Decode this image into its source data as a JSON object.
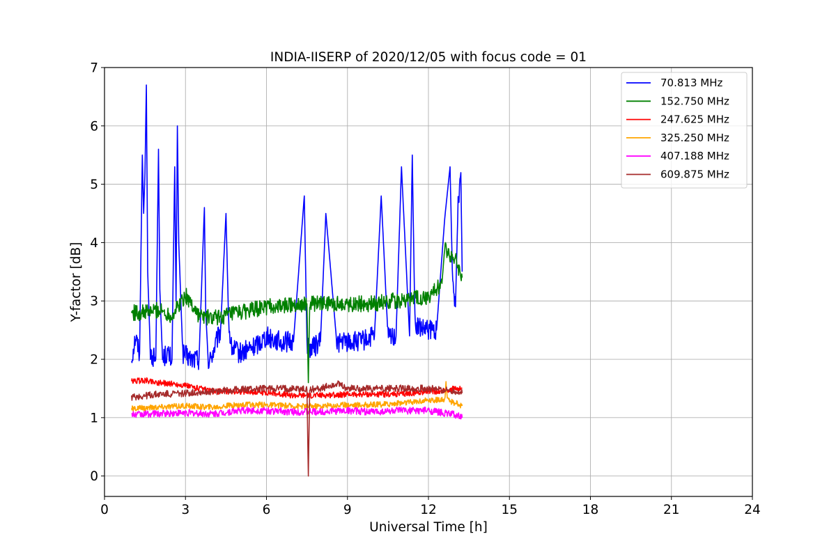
{
  "chart_data": {
    "type": "line",
    "title": "INDIA-IISERP of 2020/12/05 with focus code = 01",
    "xlabel": "Universal Time [h]",
    "ylabel": "Y-factor [dB]",
    "xlim": [
      0,
      24
    ],
    "ylim": [
      -0.35,
      7.0
    ],
    "xticks": [
      "0",
      "3",
      "6",
      "9",
      "12",
      "15",
      "18",
      "21",
      "24"
    ],
    "yticks": [
      "0",
      "1",
      "2",
      "3",
      "4",
      "5",
      "6",
      "7"
    ],
    "grid": true,
    "legend_position": "top-right",
    "series": [
      {
        "name": "  70.813 MHz",
        "color": "#0000ff",
        "x": [
          1.0,
          1.15,
          1.3,
          1.4,
          1.45,
          1.5,
          1.55,
          1.6,
          1.7,
          1.9,
          2.0,
          2.05,
          2.15,
          2.3,
          2.5,
          2.6,
          2.65,
          2.7,
          2.75,
          2.9,
          3.2,
          3.5,
          3.7,
          3.75,
          3.85,
          4.0,
          4.3,
          4.5,
          4.6,
          4.7,
          5.0,
          5.5,
          6.0,
          6.5,
          7.0,
          7.4,
          7.5,
          7.55,
          7.7,
          8.0,
          8.2,
          8.6,
          9.0,
          9.5,
          10.0,
          10.25,
          10.5,
          10.8,
          11.0,
          11.3,
          11.4,
          11.5,
          11.8,
          12.0,
          12.3,
          12.6,
          12.8,
          12.9,
          13.0,
          13.1,
          13.2,
          13.25
        ],
        "values": [
          2.0,
          2.4,
          2.1,
          5.5,
          4.5,
          5.2,
          6.7,
          3.5,
          2.1,
          2.0,
          5.6,
          3.2,
          2.0,
          2.1,
          2.0,
          5.3,
          3.0,
          6.0,
          4.0,
          2.1,
          2.0,
          2.0,
          4.6,
          2.8,
          1.9,
          2.1,
          2.5,
          4.5,
          2.6,
          2.2,
          2.1,
          2.2,
          2.4,
          2.3,
          2.3,
          4.8,
          2.3,
          2.2,
          2.2,
          2.3,
          4.5,
          2.3,
          2.3,
          2.3,
          2.4,
          4.8,
          2.4,
          2.4,
          5.3,
          2.4,
          5.5,
          2.6,
          2.5,
          2.5,
          2.5,
          4.4,
          5.3,
          3.2,
          2.9,
          4.7,
          5.2,
          3.5
        ]
      },
      {
        "name": "152.750 MHz",
        "color": "#008000",
        "x": [
          1.0,
          1.5,
          2.0,
          2.5,
          3.0,
          3.5,
          4.0,
          4.5,
          5.0,
          5.5,
          6.0,
          6.5,
          7.0,
          7.5,
          7.55,
          7.6,
          8.0,
          8.5,
          9.0,
          9.5,
          10.0,
          10.5,
          11.0,
          11.5,
          12.0,
          12.5,
          12.6,
          12.8,
          13.0,
          13.25
        ],
        "values": [
          2.8,
          2.8,
          2.85,
          2.75,
          3.1,
          2.75,
          2.7,
          2.75,
          2.8,
          2.85,
          2.9,
          2.9,
          2.95,
          2.95,
          1.6,
          2.95,
          2.95,
          2.95,
          2.95,
          2.95,
          2.95,
          3.0,
          3.0,
          3.05,
          3.05,
          3.3,
          3.9,
          3.8,
          3.7,
          3.4
        ]
      },
      {
        "name": "247.625 MHz",
        "color": "#ff0000",
        "x": [
          1.0,
          1.5,
          2.0,
          2.5,
          3.0,
          3.5,
          4.0,
          5.0,
          6.0,
          7.0,
          7.5,
          8.0,
          9.0,
          10.0,
          11.0,
          12.0,
          12.5,
          13.0,
          13.25
        ],
        "values": [
          1.62,
          1.64,
          1.6,
          1.58,
          1.55,
          1.5,
          1.45,
          1.45,
          1.43,
          1.38,
          1.38,
          1.38,
          1.4,
          1.4,
          1.4,
          1.45,
          1.45,
          1.5,
          1.5
        ]
      },
      {
        "name": "325.250 MHz",
        "color": "#ffa500",
        "x": [
          1.0,
          2.0,
          3.0,
          4.0,
          5.0,
          6.0,
          7.0,
          7.5,
          8.0,
          9.0,
          10.0,
          11.0,
          12.0,
          12.6,
          12.65,
          12.7,
          13.0,
          13.25
        ],
        "values": [
          1.15,
          1.18,
          1.2,
          1.18,
          1.22,
          1.22,
          1.2,
          1.2,
          1.2,
          1.22,
          1.22,
          1.25,
          1.3,
          1.3,
          1.6,
          1.3,
          1.25,
          1.2
        ]
      },
      {
        "name": "407.188 MHz",
        "color": "#ff00ff",
        "x": [
          1.0,
          2.0,
          3.0,
          4.0,
          5.0,
          6.0,
          7.0,
          7.5,
          8.0,
          9.0,
          10.0,
          11.0,
          12.0,
          13.0,
          13.25
        ],
        "values": [
          1.05,
          1.07,
          1.08,
          1.06,
          1.12,
          1.12,
          1.1,
          1.1,
          1.1,
          1.12,
          1.1,
          1.12,
          1.12,
          1.05,
          1.0
        ]
      },
      {
        "name": "609.875 MHz",
        "color": "#a52a2a",
        "x": [
          1.0,
          2.0,
          3.0,
          4.0,
          5.0,
          6.0,
          7.0,
          7.5,
          7.55,
          7.6,
          8.0,
          8.6,
          9.0,
          10.0,
          11.0,
          12.0,
          13.0,
          13.25
        ],
        "values": [
          1.35,
          1.4,
          1.42,
          1.45,
          1.48,
          1.5,
          1.5,
          1.48,
          0.0,
          1.48,
          1.5,
          1.58,
          1.5,
          1.5,
          1.5,
          1.5,
          1.45,
          1.42
        ]
      }
    ]
  }
}
